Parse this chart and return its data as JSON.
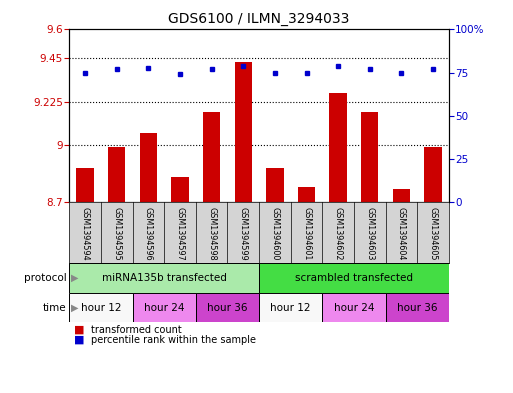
{
  "title": "GDS6100 / ILMN_3294033",
  "samples": [
    "GSM1394594",
    "GSM1394595",
    "GSM1394596",
    "GSM1394597",
    "GSM1394598",
    "GSM1394599",
    "GSM1394600",
    "GSM1394601",
    "GSM1394602",
    "GSM1394603",
    "GSM1394604",
    "GSM1394605"
  ],
  "bar_values": [
    8.88,
    8.99,
    9.06,
    8.83,
    9.17,
    9.43,
    8.88,
    8.78,
    9.27,
    9.17,
    8.77,
    8.99
  ],
  "percentile_values": [
    75,
    77,
    78,
    74,
    77,
    79,
    75,
    75,
    79,
    77,
    75,
    77
  ],
  "bar_color": "#cc0000",
  "dot_color": "#0000cc",
  "ylim_left": [
    8.7,
    9.6
  ],
  "ylim_right": [
    0,
    100
  ],
  "yticks_left": [
    8.7,
    9.0,
    9.225,
    9.45,
    9.6
  ],
  "ytick_labels_left": [
    "8.7",
    "9",
    "9.225",
    "9.45",
    "9.6"
  ],
  "yticks_right": [
    0,
    25,
    50,
    75,
    100
  ],
  "ytick_labels_right": [
    "0",
    "25",
    "50",
    "75",
    "100%"
  ],
  "hlines": [
    9.0,
    9.225,
    9.45
  ],
  "protocol_groups": [
    {
      "label": "miRNA135b transfected",
      "start": 0,
      "end": 6,
      "color": "#aaeaaa"
    },
    {
      "label": "scrambled transfected",
      "start": 6,
      "end": 12,
      "color": "#44dd44"
    }
  ],
  "time_groups": [
    {
      "label": "hour 12",
      "start": 0,
      "end": 2,
      "color": "#f8f8f8"
    },
    {
      "label": "hour 24",
      "start": 2,
      "end": 4,
      "color": "#ee88ee"
    },
    {
      "label": "hour 36",
      "start": 4,
      "end": 6,
      "color": "#cc44cc"
    },
    {
      "label": "hour 12",
      "start": 6,
      "end": 8,
      "color": "#f8f8f8"
    },
    {
      "label": "hour 24",
      "start": 8,
      "end": 10,
      "color": "#ee88ee"
    },
    {
      "label": "hour 36",
      "start": 10,
      "end": 12,
      "color": "#cc44cc"
    }
  ],
  "legend_items": [
    {
      "label": "transformed count",
      "color": "#cc0000"
    },
    {
      "label": "percentile rank within the sample",
      "color": "#0000cc"
    }
  ],
  "bar_width": 0.55,
  "background_color": "#ffffff",
  "sample_bg_color": "#d4d4d4",
  "title_fontsize": 10
}
